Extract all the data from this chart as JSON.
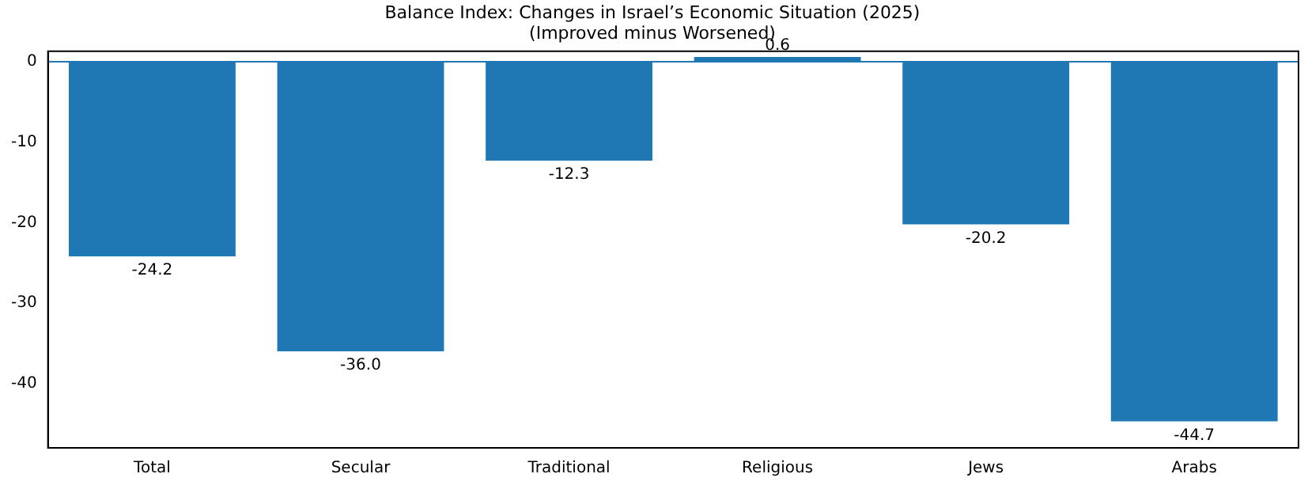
{
  "chart_data": {
    "type": "bar",
    "title": "Balance Index: Changes in Israel’s Economic Situation (2025)",
    "subtitle": "(Improved minus Worsened)",
    "categories": [
      "Total",
      "Secular",
      "Traditional",
      "Religious",
      "Jews",
      "Arabs"
    ],
    "values": [
      -24.2,
      -36.0,
      -12.3,
      0.6,
      -20.2,
      -44.7
    ],
    "value_labels": [
      "-24.2",
      "-36.0",
      "-12.3",
      "0.6",
      "-20.2",
      "-44.7"
    ],
    "color": "#1f77b4",
    "ylim": [
      -48,
      1.3
    ],
    "yticks": [
      -40,
      -30,
      -20,
      -10,
      0
    ],
    "ref_lines": [
      {
        "axis": "y",
        "value": 0,
        "color": "#1f77b4"
      }
    ],
    "grid": false,
    "legend": false
  }
}
